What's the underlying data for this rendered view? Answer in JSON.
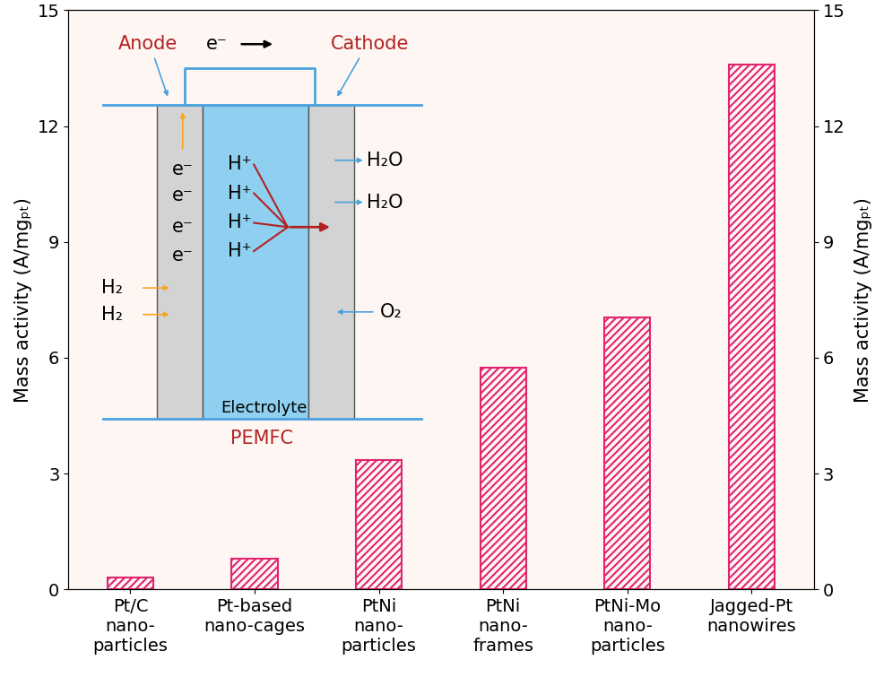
{
  "chart_data": {
    "type": "bar",
    "categories": [
      "Pt/C\nnano-\nparticles",
      "Pt-based\nnano-cages",
      "PtNi\nnano-\nparticles",
      "PtNi\nnano-\nframes",
      "PtNi-Mo\nnano-\nparticles",
      "Jagged-Pt\nnanowires"
    ],
    "values": [
      0.3,
      0.8,
      3.35,
      5.75,
      7.05,
      13.6
    ],
    "color": "#e0256f",
    "y_label": "Mass activity (A/mgₚₜ)",
    "ylim": [
      0,
      15
    ],
    "yticks": [
      0,
      3,
      6,
      9,
      12,
      15
    ],
    "y2_label": "Mass activity (A/mgₚₜ)",
    "y2lim": [
      0,
      15
    ],
    "y2ticks": [
      0,
      3,
      6,
      9,
      12,
      15
    ],
    "grid": false,
    "annotations": {
      "anode": "Anode",
      "cathode": "Cathode",
      "electron_flow": "e⁻",
      "anode_electrons": [
        "e⁻",
        "e⁻",
        "e⁻",
        "e⁻"
      ],
      "anode_inputs": [
        "H₂",
        "H₂"
      ],
      "protons": [
        "H⁺",
        "H⁺",
        "H⁺",
        "H⁺"
      ],
      "cathode_outputs": [
        "H₂O",
        "H₂O"
      ],
      "cathode_input": "O₂",
      "electrolyte": "Electrolyte",
      "cell": "PEMFC"
    }
  }
}
